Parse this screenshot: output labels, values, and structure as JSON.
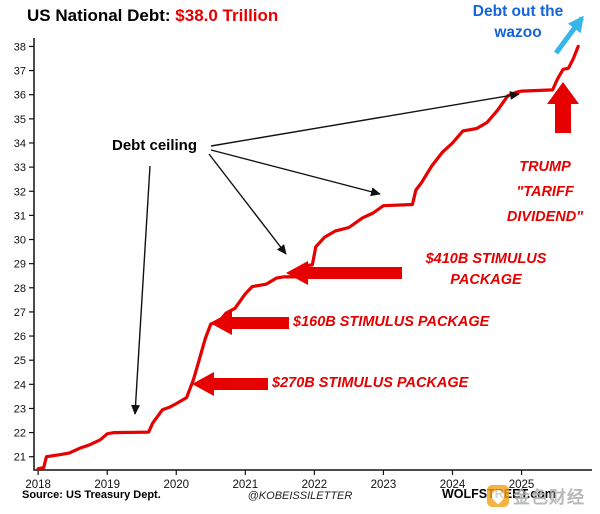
{
  "title": {
    "prefix": "US National Debt: ",
    "amount": "$38.0 Trillion"
  },
  "chart_data": {
    "type": "line",
    "title": "US National Debt: $38.0 Trillion",
    "xlabel": "",
    "ylabel": "",
    "grid": false,
    "legend_position": "none",
    "x_ticks": [
      2018,
      2019,
      2020,
      2021,
      2022,
      2023,
      2024,
      2025
    ],
    "y_ticks": [
      21,
      22,
      23,
      24,
      25,
      26,
      27,
      28,
      29,
      30,
      31,
      32,
      33,
      34,
      35,
      36,
      37,
      38
    ],
    "xlim": [
      2017.94,
      2026.02
    ],
    "ylim": [
      20.45,
      38.35
    ],
    "series": [
      {
        "name": "US National Debt ($ trillions)",
        "color": "#e60000",
        "points": [
          [
            2018.0,
            20.5
          ],
          [
            2018.08,
            20.55
          ],
          [
            2018.12,
            21.0
          ],
          [
            2018.3,
            21.08
          ],
          [
            2018.45,
            21.15
          ],
          [
            2018.6,
            21.35
          ],
          [
            2018.75,
            21.5
          ],
          [
            2018.9,
            21.7
          ],
          [
            2019.0,
            21.95
          ],
          [
            2019.1,
            22.0
          ],
          [
            2019.6,
            22.02
          ],
          [
            2019.66,
            22.4
          ],
          [
            2019.8,
            22.95
          ],
          [
            2019.9,
            23.05
          ],
          [
            2020.0,
            23.2
          ],
          [
            2020.15,
            23.45
          ],
          [
            2020.25,
            24.2
          ],
          [
            2020.33,
            25.0
          ],
          [
            2020.42,
            25.9
          ],
          [
            2020.5,
            26.5
          ],
          [
            2020.62,
            26.6
          ],
          [
            2020.72,
            26.95
          ],
          [
            2020.85,
            27.15
          ],
          [
            2021.0,
            27.75
          ],
          [
            2021.1,
            28.05
          ],
          [
            2021.3,
            28.15
          ],
          [
            2021.45,
            28.4
          ],
          [
            2021.55,
            28.45
          ],
          [
            2021.78,
            28.45
          ],
          [
            2021.82,
            28.9
          ],
          [
            2021.97,
            28.95
          ],
          [
            2022.02,
            29.7
          ],
          [
            2022.15,
            30.1
          ],
          [
            2022.3,
            30.35
          ],
          [
            2022.5,
            30.5
          ],
          [
            2022.7,
            30.9
          ],
          [
            2022.85,
            31.1
          ],
          [
            2023.0,
            31.4
          ],
          [
            2023.42,
            31.45
          ],
          [
            2023.47,
            32.05
          ],
          [
            2023.55,
            32.35
          ],
          [
            2023.7,
            33.05
          ],
          [
            2023.85,
            33.6
          ],
          [
            2024.0,
            34.0
          ],
          [
            2024.15,
            34.5
          ],
          [
            2024.35,
            34.6
          ],
          [
            2024.5,
            34.85
          ],
          [
            2024.65,
            35.35
          ],
          [
            2024.8,
            35.95
          ],
          [
            2024.92,
            36.1
          ],
          [
            2025.0,
            36.15
          ],
          [
            2025.45,
            36.2
          ],
          [
            2025.52,
            36.65
          ],
          [
            2025.6,
            37.05
          ],
          [
            2025.68,
            37.1
          ],
          [
            2025.75,
            37.5
          ],
          [
            2025.82,
            38.0
          ]
        ]
      }
    ],
    "annotated_events": [
      {
        "label": "Debt ceiling",
        "plateaus_at": [
          22.0,
          28.45,
          31.4,
          36.15
        ]
      },
      {
        "label": "$270B STIMULUS PACKAGE",
        "at_value": 23.5
      },
      {
        "label": "$160B STIMULUS PACKAGE",
        "at_value": 26.5
      },
      {
        "label": "$410B STIMULUS PACKAGE",
        "at_value": 28.45
      },
      {
        "label": "TRUMP \"TARIFF DIVIDEND\"",
        "at_value": 38.0
      },
      {
        "label": "Debt out the wazoo",
        "at_value": 38.0
      }
    ]
  },
  "annotations": {
    "debt_ceiling": "Debt ceiling",
    "wazoo": {
      "line1": "Debt out the",
      "line2": "wazoo"
    },
    "tariff": {
      "line1": "TRUMP",
      "line2": "\"TARIFF",
      "line3": "DIVIDEND\""
    },
    "stimulus_410": {
      "line1": "$410B STIMULUS",
      "line2": "PACKAGE"
    },
    "stimulus_160": "$160B STIMULUS PACKAGE",
    "stimulus_270": "$270B STIMULUS PACKAGE"
  },
  "footer": {
    "source": "Source: US Treasury Dept.",
    "handle": "@KOBEISSILETTER",
    "site": "WOLFSTREET.com"
  },
  "watermark": {
    "text": "金色财经"
  },
  "colors": {
    "line": "#e60000",
    "blue_text": "#1565d8",
    "cyan_arrow": "#35b5ea",
    "red": "#e60000"
  }
}
